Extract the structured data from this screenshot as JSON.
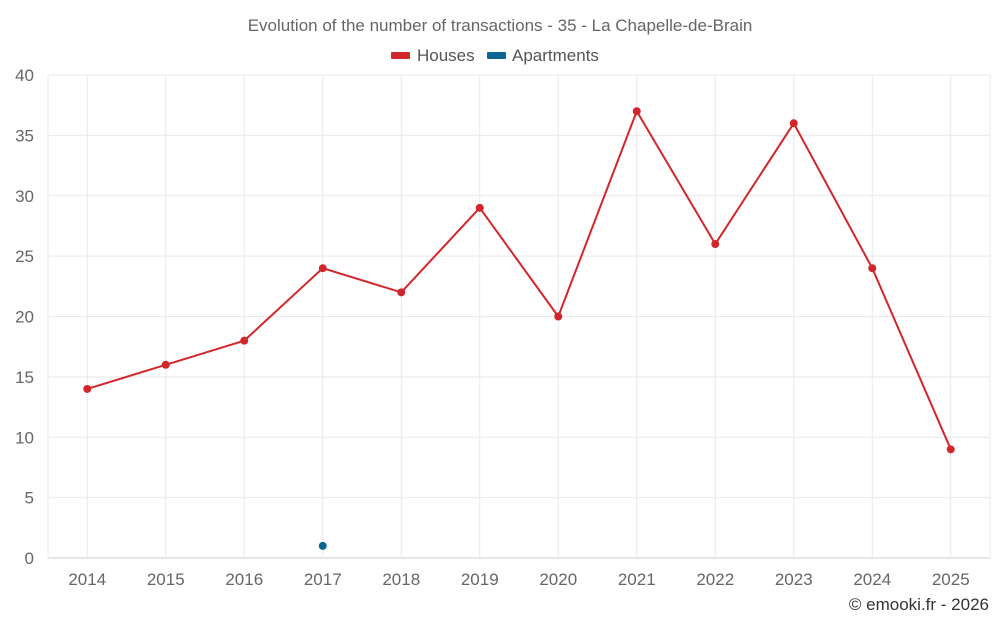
{
  "chart_data": {
    "type": "line",
    "title": "Evolution of the number of transactions - 35 - La Chapelle-de-Brain",
    "categories": [
      "2014",
      "2015",
      "2016",
      "2017",
      "2018",
      "2019",
      "2020",
      "2021",
      "2022",
      "2023",
      "2024",
      "2025"
    ],
    "series": [
      {
        "name": "Houses",
        "color": "#d3262b",
        "values": [
          14,
          16,
          18,
          24,
          22,
          29,
          20,
          37,
          26,
          36,
          24,
          9
        ]
      },
      {
        "name": "Apartments",
        "color": "#0b6695",
        "values": [
          null,
          null,
          null,
          1,
          null,
          null,
          null,
          null,
          null,
          null,
          null,
          null
        ]
      }
    ],
    "xlabel": "",
    "ylabel": "",
    "ylim": [
      0,
      40
    ],
    "yticks": [
      0,
      5,
      10,
      15,
      20,
      25,
      30,
      35,
      40
    ],
    "grid": true,
    "legend_position": "top-center"
  },
  "footer": "© emooki.fr - 2026"
}
